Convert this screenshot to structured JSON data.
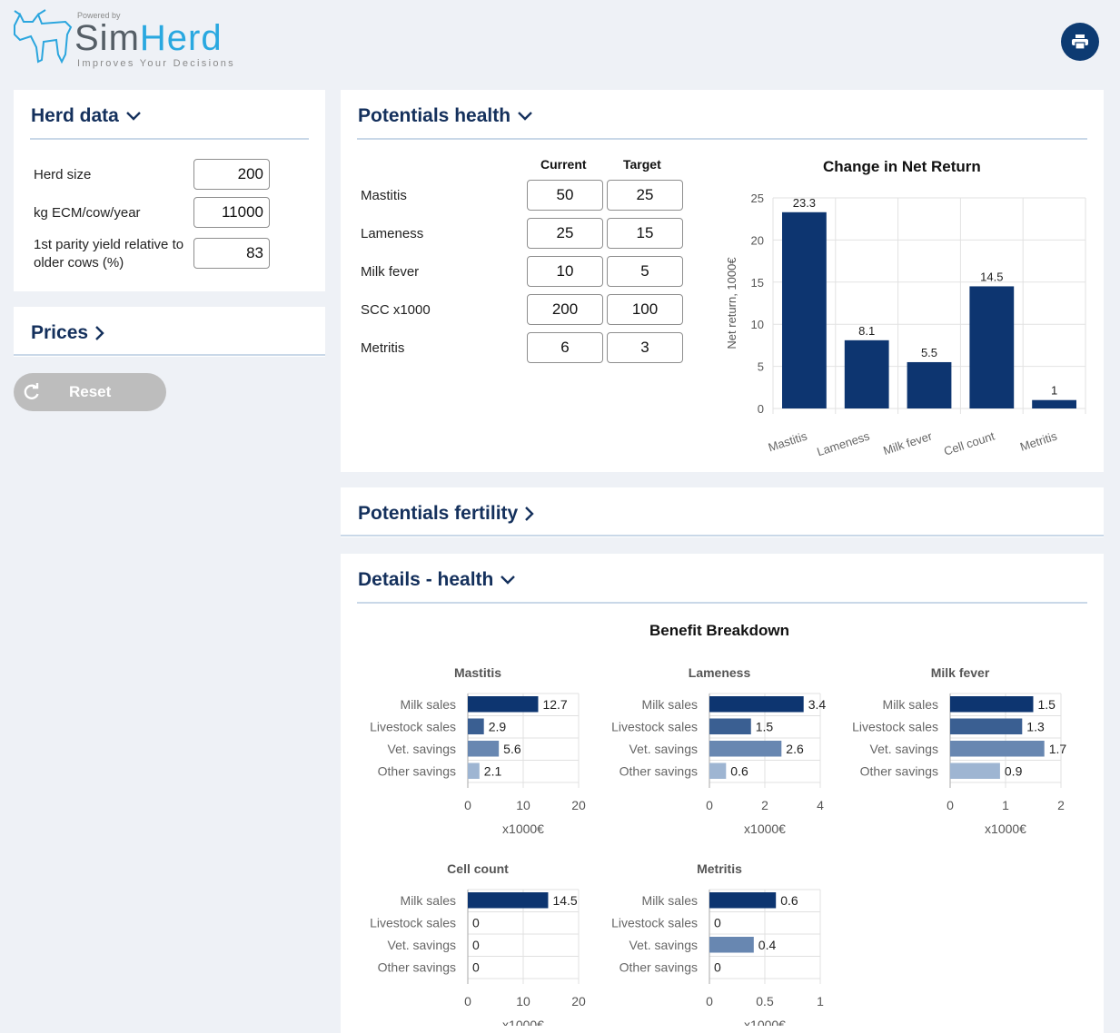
{
  "brand": {
    "powered_by": "Powered by",
    "name_part1": "Sim",
    "name_part2": "Herd",
    "tagline": "Improves Your Decisions",
    "accent_color": "#29a8e0"
  },
  "toolbar": {
    "print_icon": "printer-icon"
  },
  "herd_data": {
    "title": "Herd data",
    "fields": [
      {
        "label": "Herd size",
        "value": "200"
      },
      {
        "label": "kg ECM/cow/year",
        "value": "11000"
      },
      {
        "label": "1st parity yield relative to older cows (%)",
        "value": "83"
      }
    ]
  },
  "prices": {
    "title": "Prices"
  },
  "reset": {
    "label": "Reset"
  },
  "potentials_health": {
    "title": "Potentials health",
    "col_current": "Current",
    "col_target": "Target",
    "rows": [
      {
        "label": "Mastitis",
        "current": "50",
        "target": "25"
      },
      {
        "label": "Lameness",
        "current": "25",
        "target": "15"
      },
      {
        "label": "Milk fever",
        "current": "10",
        "target": "5"
      },
      {
        "label": "SCC x1000",
        "current": "200",
        "target": "100"
      },
      {
        "label": "Metritis",
        "current": "6",
        "target": "3"
      }
    ]
  },
  "potentials_fertility": {
    "title": "Potentials fertility"
  },
  "details_health": {
    "title": "Details - health"
  },
  "chart_data": [
    {
      "type": "bar",
      "title": "Change in Net Return",
      "ylabel": "Net return, 1000€",
      "xlabel": "",
      "categories": [
        "Mastitis",
        "Lameness",
        "Milk fever",
        "Cell count",
        "Metritis"
      ],
      "values": [
        23.3,
        8.1,
        5.5,
        14.5,
        1
      ],
      "ylim": [
        0,
        25
      ],
      "yticks": [
        0,
        5,
        10,
        15,
        20,
        25
      ],
      "grid": true,
      "color": "#0d3570"
    },
    {
      "type": "bar",
      "orientation": "horizontal",
      "title": "Benefit Breakdown",
      "xlabel": "x1000€",
      "categories": [
        "Milk sales",
        "Livestock sales",
        "Vet. savings",
        "Other savings"
      ],
      "colors": [
        "#0d3570",
        "#3a5f92",
        "#6887b1",
        "#9eb5d2"
      ],
      "panels": [
        {
          "title": "Mastitis",
          "values": [
            12.7,
            2.9,
            5.6,
            2.1
          ],
          "xlim": [
            0,
            20
          ],
          "xticks": [
            0,
            10,
            20
          ]
        },
        {
          "title": "Lameness",
          "values": [
            3.4,
            1.5,
            2.6,
            0.6
          ],
          "xlim": [
            0,
            4
          ],
          "xticks": [
            0,
            2,
            4
          ]
        },
        {
          "title": "Milk fever",
          "values": [
            1.5,
            1.3,
            1.7,
            0.9
          ],
          "xlim": [
            0,
            2
          ],
          "xticks": [
            0,
            1,
            2
          ]
        },
        {
          "title": "Cell count",
          "values": [
            14.5,
            0,
            0,
            0
          ],
          "xlim": [
            0,
            20
          ],
          "xticks": [
            0,
            10,
            20
          ]
        },
        {
          "title": "Metritis",
          "values": [
            0.6,
            0,
            0.4,
            0
          ],
          "xlim": [
            0,
            1
          ],
          "xticks": [
            0,
            0.5,
            1
          ]
        }
      ]
    }
  ]
}
